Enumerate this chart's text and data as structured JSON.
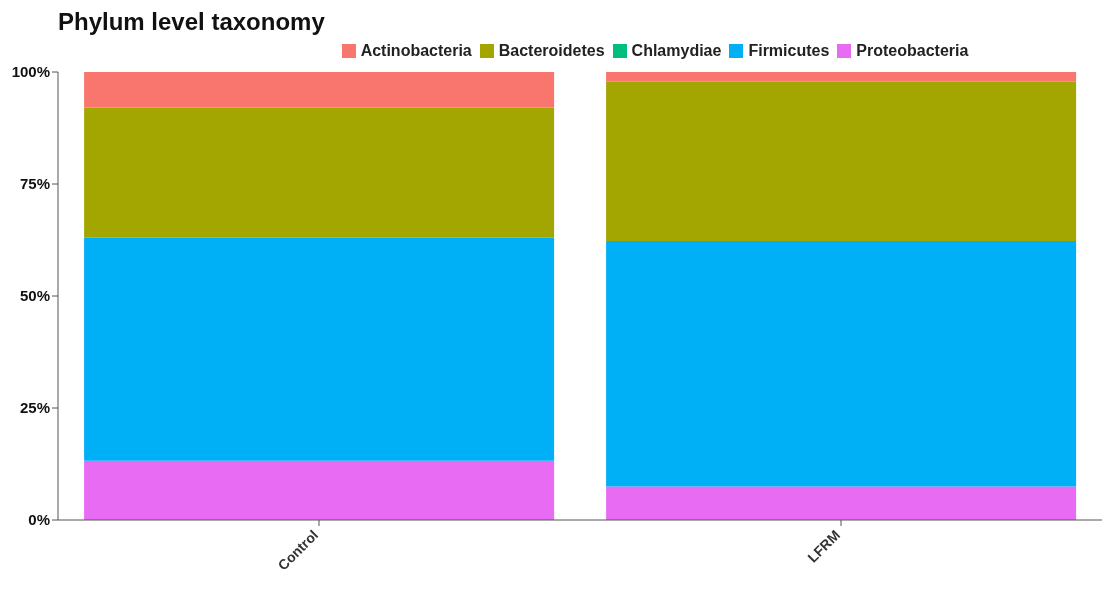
{
  "chart_data": {
    "type": "bar",
    "title": "Phylum level taxonomy",
    "categories": [
      "Control",
      "LFRM"
    ],
    "stacked": true,
    "legend": "top",
    "grid": false,
    "series": [
      {
        "name": "Proteobacteria",
        "color": "#e76bf3",
        "values": [
          13.2,
          7.5
        ]
      },
      {
        "name": "Firmicutes",
        "color": "#00b0f6",
        "values": [
          49.8,
          54.8
        ]
      },
      {
        "name": "Chlamydiae",
        "color": "#00bf7d",
        "values": [
          0,
          0
        ]
      },
      {
        "name": "Bacteroidetes",
        "color": "#a3a500",
        "values": [
          29.1,
          35.5
        ]
      },
      {
        "name": "Actinobacteria",
        "color": "#f8766d",
        "values": [
          7.9,
          2.2
        ]
      }
    ],
    "ylim": [
      0,
      100
    ],
    "yticks": [
      {
        "value": 0,
        "label": "0%"
      },
      {
        "value": 25,
        "label": "25%"
      },
      {
        "value": 50,
        "label": "50%"
      },
      {
        "value": 75,
        "label": "75%"
      },
      {
        "value": 100,
        "label": "100%"
      }
    ]
  }
}
